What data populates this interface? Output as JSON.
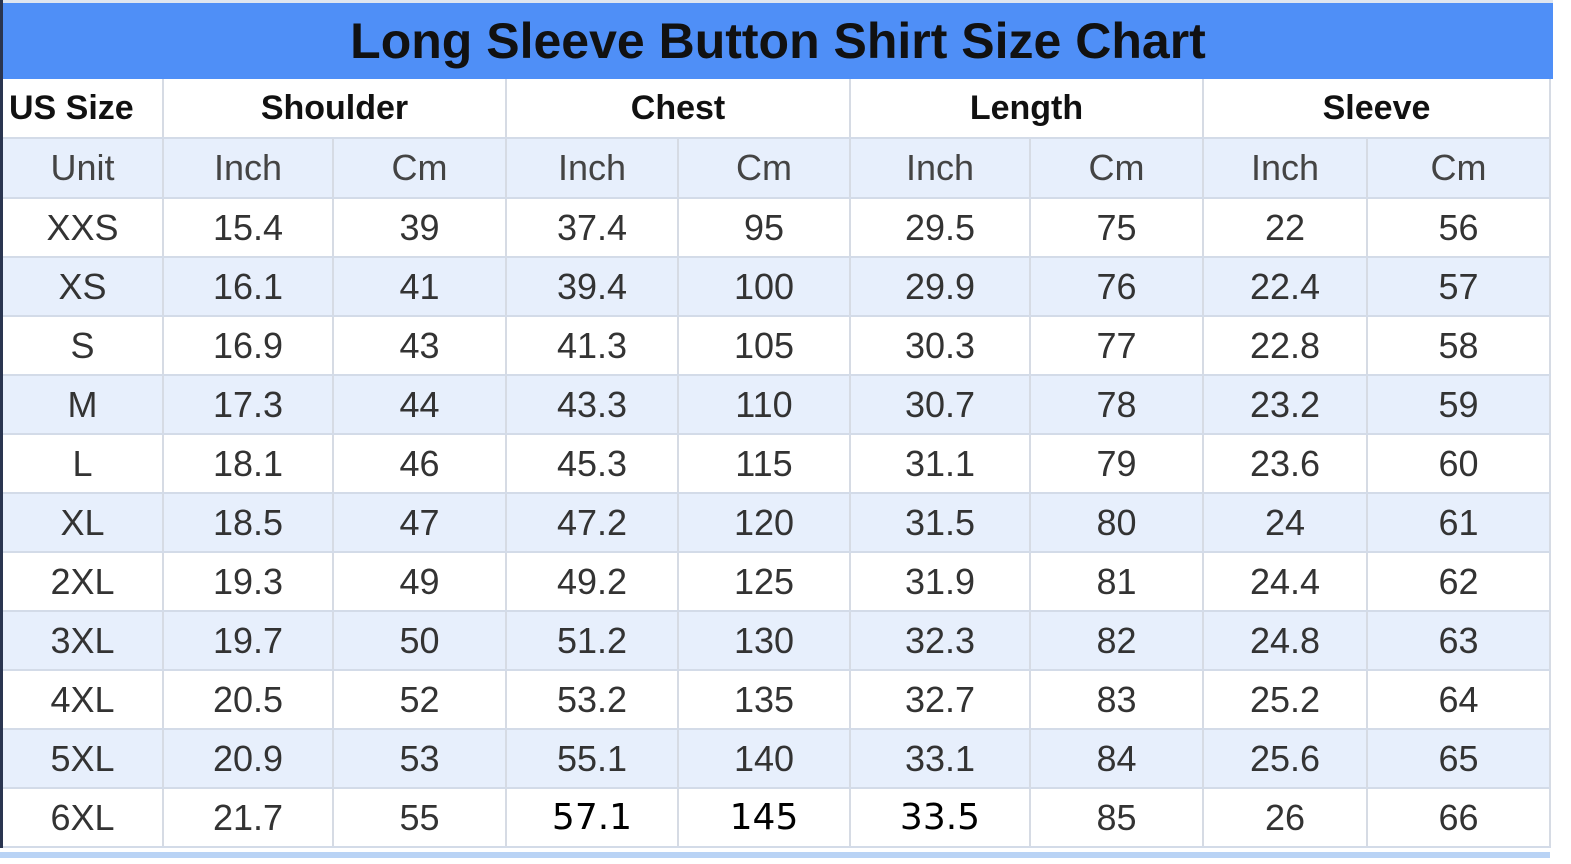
{
  "title": "Long Sleeve Button Shirt Size Chart",
  "colors": {
    "title_bg": "#4f8ff7",
    "alt_row": "#e7effc"
  },
  "group_headers": [
    "US Size",
    "Shoulder",
    "Chest",
    "Length",
    "Sleeve"
  ],
  "unit_row": [
    "Unit",
    "Inch",
    "Cm",
    "Inch",
    "Cm",
    "Inch",
    "Cm",
    "Inch",
    "Cm"
  ],
  "rows": [
    [
      "XXS",
      "15.4",
      "39",
      "37.4",
      "95",
      "29.5",
      "75",
      "22",
      "56"
    ],
    [
      "XS",
      "16.1",
      "41",
      "39.4",
      "100",
      "29.9",
      "76",
      "22.4",
      "57"
    ],
    [
      "S",
      "16.9",
      "43",
      "41.3",
      "105",
      "30.3",
      "77",
      "22.8",
      "58"
    ],
    [
      "M",
      "17.3",
      "44",
      "43.3",
      "110",
      "30.7",
      "78",
      "23.2",
      "59"
    ],
    [
      "L",
      "18.1",
      "46",
      "45.3",
      "115",
      "31.1",
      "79",
      "23.6",
      "60"
    ],
    [
      "XL",
      "18.5",
      "47",
      "47.2",
      "120",
      "31.5",
      "80",
      "24",
      "61"
    ],
    [
      "2XL",
      "19.3",
      "49",
      "49.2",
      "125",
      "31.9",
      "81",
      "24.4",
      "62"
    ],
    [
      "3XL",
      "19.7",
      "50",
      "51.2",
      "130",
      "32.3",
      "82",
      "24.8",
      "63"
    ],
    [
      "4XL",
      "20.5",
      "52",
      "53.2",
      "135",
      "32.7",
      "83",
      "25.2",
      "64"
    ],
    [
      "5XL",
      "20.9",
      "53",
      "55.1",
      "140",
      "33.1",
      "84",
      "25.6",
      "65"
    ],
    [
      "6XL",
      "21.7",
      "55",
      "57.1",
      "145",
      "33.5",
      "85",
      "26",
      "66"
    ]
  ]
}
